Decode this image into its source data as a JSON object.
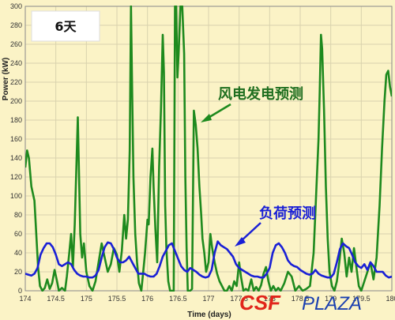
{
  "badge": {
    "label": "6天"
  },
  "watermark": {
    "part1": "CSF",
    "part2": "PLAZA"
  },
  "chart_data": {
    "type": "line",
    "title": "",
    "xlabel": "Time (days)",
    "ylabel": "Power (kW)",
    "xlim": [
      174,
      180
    ],
    "ylim": [
      0,
      300
    ],
    "x_ticks": [
      "174",
      "174.5",
      "175",
      "175.5",
      "176",
      "176.5",
      "177",
      "177.5",
      "178",
      "178.5",
      "179",
      "179.5",
      "180"
    ],
    "y_ticks": [
      "0",
      "20",
      "40",
      "60",
      "80",
      "100",
      "120",
      "140",
      "160",
      "180",
      "200",
      "220",
      "240",
      "260",
      "280",
      "300"
    ],
    "grid": true,
    "series": [
      {
        "name": "风电发电预测",
        "color": "#1e8a1e",
        "points": [
          [
            174.0,
            130
          ],
          [
            174.03,
            148
          ],
          [
            174.06,
            140
          ],
          [
            174.1,
            110
          ],
          [
            174.15,
            95
          ],
          [
            174.18,
            60
          ],
          [
            174.21,
            25
          ],
          [
            174.24,
            5
          ],
          [
            174.28,
            0
          ],
          [
            174.32,
            3
          ],
          [
            174.36,
            12
          ],
          [
            174.4,
            2
          ],
          [
            174.44,
            8
          ],
          [
            174.48,
            22
          ],
          [
            174.52,
            10
          ],
          [
            174.55,
            0
          ],
          [
            174.6,
            3
          ],
          [
            174.65,
            0
          ],
          [
            174.68,
            15
          ],
          [
            174.72,
            40
          ],
          [
            174.75,
            60
          ],
          [
            174.78,
            25
          ],
          [
            174.81,
            70
          ],
          [
            174.84,
            140
          ],
          [
            174.86,
            183
          ],
          [
            174.88,
            120
          ],
          [
            174.9,
            60
          ],
          [
            174.93,
            35
          ],
          [
            174.96,
            50
          ],
          [
            175.0,
            20
          ],
          [
            175.05,
            5
          ],
          [
            175.1,
            0
          ],
          [
            175.15,
            10
          ],
          [
            175.2,
            30
          ],
          [
            175.25,
            50
          ],
          [
            175.3,
            35
          ],
          [
            175.35,
            20
          ],
          [
            175.4,
            28
          ],
          [
            175.45,
            45
          ],
          [
            175.5,
            38
          ],
          [
            175.54,
            20
          ],
          [
            175.58,
            42
          ],
          [
            175.62,
            80
          ],
          [
            175.65,
            55
          ],
          [
            175.68,
            75
          ],
          [
            175.71,
            148
          ],
          [
            175.73,
            300
          ],
          [
            175.75,
            210
          ],
          [
            175.77,
            120
          ],
          [
            175.8,
            60
          ],
          [
            175.83,
            30
          ],
          [
            175.86,
            8
          ],
          [
            175.9,
            0
          ],
          [
            175.93,
            20
          ],
          [
            175.96,
            40
          ],
          [
            176.0,
            75
          ],
          [
            176.02,
            70
          ],
          [
            176.05,
            120
          ],
          [
            176.08,
            150
          ],
          [
            176.1,
            110
          ],
          [
            176.13,
            65
          ],
          [
            176.16,
            30
          ],
          [
            176.19,
            130
          ],
          [
            176.22,
            190
          ],
          [
            176.25,
            270
          ],
          [
            176.27,
            230
          ],
          [
            176.29,
            90
          ],
          [
            176.31,
            45
          ],
          [
            176.34,
            10
          ],
          [
            176.37,
            0
          ],
          [
            176.4,
            0
          ],
          [
            176.43,
            0
          ],
          [
            176.45,
            300
          ],
          [
            176.47,
            300
          ],
          [
            176.49,
            225
          ],
          [
            176.51,
            250
          ],
          [
            176.54,
            300
          ],
          [
            176.57,
            300
          ],
          [
            176.6,
            250
          ],
          [
            176.62,
            120
          ],
          [
            176.64,
            45
          ],
          [
            176.66,
            0
          ],
          [
            176.7,
            0
          ],
          [
            176.73,
            2
          ],
          [
            176.76,
            190
          ],
          [
            176.79,
            175
          ],
          [
            176.82,
            150
          ],
          [
            176.85,
            110
          ],
          [
            176.88,
            80
          ],
          [
            176.9,
            55
          ],
          [
            176.93,
            40
          ],
          [
            176.96,
            20
          ],
          [
            177.0,
            30
          ],
          [
            177.03,
            60
          ],
          [
            177.06,
            45
          ],
          [
            177.1,
            30
          ],
          [
            177.14,
            18
          ],
          [
            177.18,
            10
          ],
          [
            177.22,
            5
          ],
          [
            177.26,
            0
          ],
          [
            177.3,
            0
          ],
          [
            177.34,
            5
          ],
          [
            177.38,
            0
          ],
          [
            177.42,
            10
          ],
          [
            177.46,
            5
          ],
          [
            177.5,
            30
          ],
          [
            177.53,
            15
          ],
          [
            177.57,
            0
          ],
          [
            177.61,
            2
          ],
          [
            177.65,
            0
          ],
          [
            177.7,
            12
          ],
          [
            177.74,
            0
          ],
          [
            177.78,
            4
          ],
          [
            177.82,
            0
          ],
          [
            177.86,
            6
          ],
          [
            177.9,
            18
          ],
          [
            177.94,
            25
          ],
          [
            177.98,
            10
          ],
          [
            178.02,
            0
          ],
          [
            178.06,
            5
          ],
          [
            178.1,
            0
          ],
          [
            178.14,
            3
          ],
          [
            178.18,
            0
          ],
          [
            178.24,
            8
          ],
          [
            178.3,
            20
          ],
          [
            178.36,
            15
          ],
          [
            178.42,
            0
          ],
          [
            178.48,
            5
          ],
          [
            178.54,
            0
          ],
          [
            178.6,
            2
          ],
          [
            178.66,
            5
          ],
          [
            178.72,
            40
          ],
          [
            178.76,
            100
          ],
          [
            178.8,
            160
          ],
          [
            178.82,
            210
          ],
          [
            178.84,
            270
          ],
          [
            178.86,
            255
          ],
          [
            178.89,
            190
          ],
          [
            178.92,
            110
          ],
          [
            178.95,
            55
          ],
          [
            178.98,
            20
          ],
          [
            179.02,
            5
          ],
          [
            179.06,
            0
          ],
          [
            179.1,
            10
          ],
          [
            179.14,
            30
          ],
          [
            179.18,
            55
          ],
          [
            179.22,
            40
          ],
          [
            179.26,
            15
          ],
          [
            179.3,
            35
          ],
          [
            179.34,
            20
          ],
          [
            179.38,
            45
          ],
          [
            179.42,
            25
          ],
          [
            179.46,
            5
          ],
          [
            179.5,
            0
          ],
          [
            179.55,
            10
          ],
          [
            179.6,
            20
          ],
          [
            179.65,
            30
          ],
          [
            179.7,
            12
          ],
          [
            179.75,
            35
          ],
          [
            179.8,
            90
          ],
          [
            179.84,
            150
          ],
          [
            179.88,
            200
          ],
          [
            179.91,
            228
          ],
          [
            179.94,
            232
          ],
          [
            179.97,
            215
          ],
          [
            180.0,
            205
          ]
        ]
      },
      {
        "name": "负荷预测",
        "color": "#1a20d6",
        "points": [
          [
            174.0,
            18
          ],
          [
            174.05,
            17
          ],
          [
            174.1,
            16
          ],
          [
            174.15,
            18
          ],
          [
            174.2,
            24
          ],
          [
            174.25,
            38
          ],
          [
            174.3,
            45
          ],
          [
            174.35,
            50
          ],
          [
            174.4,
            50
          ],
          [
            174.45,
            46
          ],
          [
            174.5,
            38
          ],
          [
            174.55,
            28
          ],
          [
            174.6,
            26
          ],
          [
            174.65,
            28
          ],
          [
            174.7,
            30
          ],
          [
            174.75,
            28
          ],
          [
            174.8,
            22
          ],
          [
            174.85,
            18
          ],
          [
            174.9,
            16
          ],
          [
            174.95,
            15
          ],
          [
            175.0,
            15
          ],
          [
            175.05,
            14
          ],
          [
            175.1,
            14
          ],
          [
            175.15,
            16
          ],
          [
            175.2,
            22
          ],
          [
            175.25,
            35
          ],
          [
            175.3,
            46
          ],
          [
            175.35,
            51
          ],
          [
            175.4,
            50
          ],
          [
            175.45,
            44
          ],
          [
            175.5,
            35
          ],
          [
            175.55,
            30
          ],
          [
            175.6,
            30
          ],
          [
            175.65,
            32
          ],
          [
            175.7,
            36
          ],
          [
            175.75,
            30
          ],
          [
            175.8,
            24
          ],
          [
            175.85,
            18
          ],
          [
            175.9,
            18
          ],
          [
            175.95,
            18
          ],
          [
            176.0,
            16
          ],
          [
            176.05,
            15
          ],
          [
            176.1,
            15
          ],
          [
            176.15,
            18
          ],
          [
            176.2,
            26
          ],
          [
            176.25,
            36
          ],
          [
            176.3,
            42
          ],
          [
            176.35,
            48
          ],
          [
            176.4,
            50
          ],
          [
            176.45,
            42
          ],
          [
            176.5,
            34
          ],
          [
            176.55,
            26
          ],
          [
            176.6,
            22
          ],
          [
            176.65,
            20
          ],
          [
            176.7,
            24
          ],
          [
            176.75,
            22
          ],
          [
            176.8,
            20
          ],
          [
            176.85,
            17
          ],
          [
            176.9,
            15
          ],
          [
            176.95,
            14
          ],
          [
            177.0,
            15
          ],
          [
            177.05,
            22
          ],
          [
            177.1,
            40
          ],
          [
            177.15,
            52
          ],
          [
            177.2,
            48
          ],
          [
            177.25,
            46
          ],
          [
            177.3,
            44
          ],
          [
            177.35,
            40
          ],
          [
            177.4,
            36
          ],
          [
            177.45,
            28
          ],
          [
            177.5,
            24
          ],
          [
            177.55,
            22
          ],
          [
            177.6,
            20
          ],
          [
            177.65,
            18
          ],
          [
            177.7,
            16
          ],
          [
            177.75,
            15
          ],
          [
            177.8,
            15
          ],
          [
            177.85,
            14
          ],
          [
            177.9,
            14
          ],
          [
            177.95,
            18
          ],
          [
            178.0,
            24
          ],
          [
            178.05,
            40
          ],
          [
            178.1,
            48
          ],
          [
            178.15,
            50
          ],
          [
            178.2,
            46
          ],
          [
            178.25,
            40
          ],
          [
            178.3,
            32
          ],
          [
            178.35,
            28
          ],
          [
            178.4,
            26
          ],
          [
            178.45,
            25
          ],
          [
            178.5,
            22
          ],
          [
            178.55,
            20
          ],
          [
            178.6,
            18
          ],
          [
            178.65,
            17
          ],
          [
            178.7,
            18
          ],
          [
            178.75,
            22
          ],
          [
            178.8,
            18
          ],
          [
            178.85,
            16
          ],
          [
            178.9,
            15
          ],
          [
            178.95,
            14
          ],
          [
            179.0,
            14
          ],
          [
            179.05,
            18
          ],
          [
            179.1,
            30
          ],
          [
            179.15,
            44
          ],
          [
            179.2,
            50
          ],
          [
            179.25,
            47
          ],
          [
            179.3,
            45
          ],
          [
            179.35,
            38
          ],
          [
            179.4,
            30
          ],
          [
            179.45,
            26
          ],
          [
            179.5,
            24
          ],
          [
            179.55,
            28
          ],
          [
            179.6,
            22
          ],
          [
            179.65,
            30
          ],
          [
            179.7,
            26
          ],
          [
            179.75,
            20
          ],
          [
            179.8,
            20
          ],
          [
            179.85,
            20
          ],
          [
            179.9,
            16
          ],
          [
            179.95,
            14
          ],
          [
            180.0,
            15
          ]
        ]
      }
    ]
  }
}
